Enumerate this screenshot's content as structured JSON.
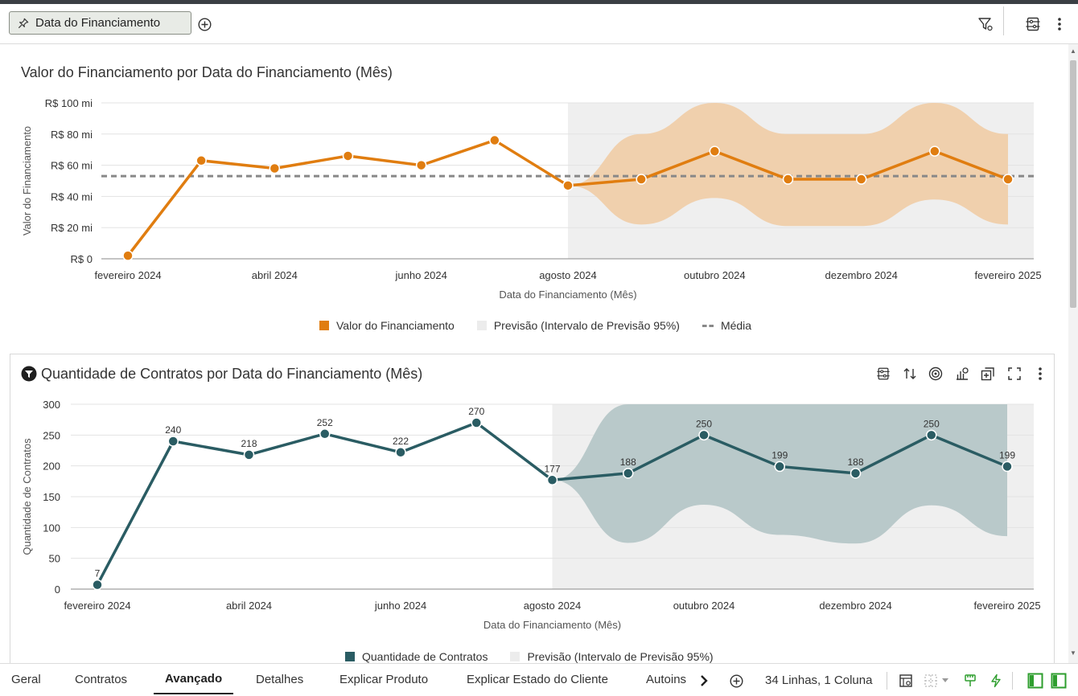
{
  "filter_bar": {
    "pill_label": "Data do Financiamento"
  },
  "chart1_header": {
    "title": "Valor do Financiamento por Data do Financiamento (Mês)"
  },
  "chart2_header": {
    "title": "Quantidade de Contratos por Data do Financiamento (Mês)"
  },
  "chart_data": [
    {
      "type": "line",
      "title": "Valor do Financiamento por Data do Financiamento (Mês)",
      "xlabel": "Data do Financiamento (Mês)",
      "ylabel": "Valor do Financiamento",
      "x_tick_labels": [
        "fevereiro 2024",
        "abril 2024",
        "junho 2024",
        "agosto 2024",
        "outubro 2024",
        "dezembro 2024",
        "fevereiro 2025"
      ],
      "y_tick_labels": [
        "R$ 0",
        "R$ 20 mi",
        "R$ 40 mi",
        "R$ 60 mi",
        "R$ 80 mi",
        "R$ 100 mi"
      ],
      "ylim": [
        0,
        100
      ],
      "x": [
        "2024-02",
        "2024-03",
        "2024-04",
        "2024-05",
        "2024-06",
        "2024-07",
        "2024-08",
        "2024-09",
        "2024-10",
        "2024-11",
        "2024-12",
        "2025-01",
        "2025-02"
      ],
      "values": [
        2,
        63,
        58,
        66,
        60,
        76,
        47,
        51,
        69,
        51,
        51,
        69,
        51
      ],
      "forecast_start": "2024-08",
      "forecast_band_lower": [
        47,
        22,
        39,
        21,
        21,
        38,
        22
      ],
      "forecast_band_upper": [
        47,
        80,
        100,
        80,
        80,
        100,
        80
      ],
      "average": 53,
      "series_color": "#e07d10",
      "band_color": "#f0d0ad",
      "forecast_bg_color": "#efefef",
      "average_color": "#888888",
      "legend_position": "bottom-center",
      "legend": [
        "Valor do Financiamento",
        "Previsão (Intervalo de Previsão 95%)",
        "Média"
      ]
    },
    {
      "type": "line",
      "title": "Quantidade de Contratos por Data do Financiamento (Mês)",
      "xlabel": "Data do Financiamento (Mês)",
      "ylabel": "Quantidade de Contratos",
      "x_tick_labels": [
        "fevereiro 2024",
        "abril 2024",
        "junho 2024",
        "agosto 2024",
        "outubro 2024",
        "dezembro 2024",
        "fevereiro 2025"
      ],
      "y_tick_labels": [
        "0",
        "50",
        "100",
        "150",
        "200",
        "250",
        "300"
      ],
      "ylim": [
        0,
        300
      ],
      "x": [
        "2024-02",
        "2024-03",
        "2024-04",
        "2024-05",
        "2024-06",
        "2024-07",
        "2024-08",
        "2024-09",
        "2024-10",
        "2024-11",
        "2024-12",
        "2025-01",
        "2025-02"
      ],
      "values": [
        7,
        240,
        218,
        252,
        222,
        270,
        177,
        188,
        250,
        199,
        188,
        250,
        199
      ],
      "data_labels": [
        "7",
        "240",
        "218",
        "252",
        "222",
        "270",
        "177",
        "188",
        "250",
        "199",
        "188",
        "250",
        "199"
      ],
      "forecast_start": "2024-08",
      "forecast_band_lower": [
        177,
        75,
        137,
        88,
        74,
        136,
        86
      ],
      "forecast_band_upper": [
        177,
        300,
        300,
        300,
        300,
        300,
        300
      ],
      "series_color": "#2a5c63",
      "band_color": "#b9c9ca",
      "forecast_bg_color": "#efefef",
      "legend_position": "bottom-center",
      "legend": [
        "Quantidade de Contratos",
        "Previsão (Intervalo de Previsão 95%)"
      ]
    }
  ],
  "tabs": [
    "Geral",
    "Contratos",
    "Avançado",
    "Detalhes",
    "Explicar Produto",
    "Explicar Estado do Cliente",
    "Autoins"
  ],
  "active_tab": "Avançado",
  "status": {
    "text": "34 Linhas, 1 Coluna"
  },
  "icons": {
    "pin": "pin-icon",
    "add_filter": "add-circle-icon",
    "filter": "filter-icon",
    "settings": "properties-icon",
    "more": "more-vertical-icon"
  }
}
